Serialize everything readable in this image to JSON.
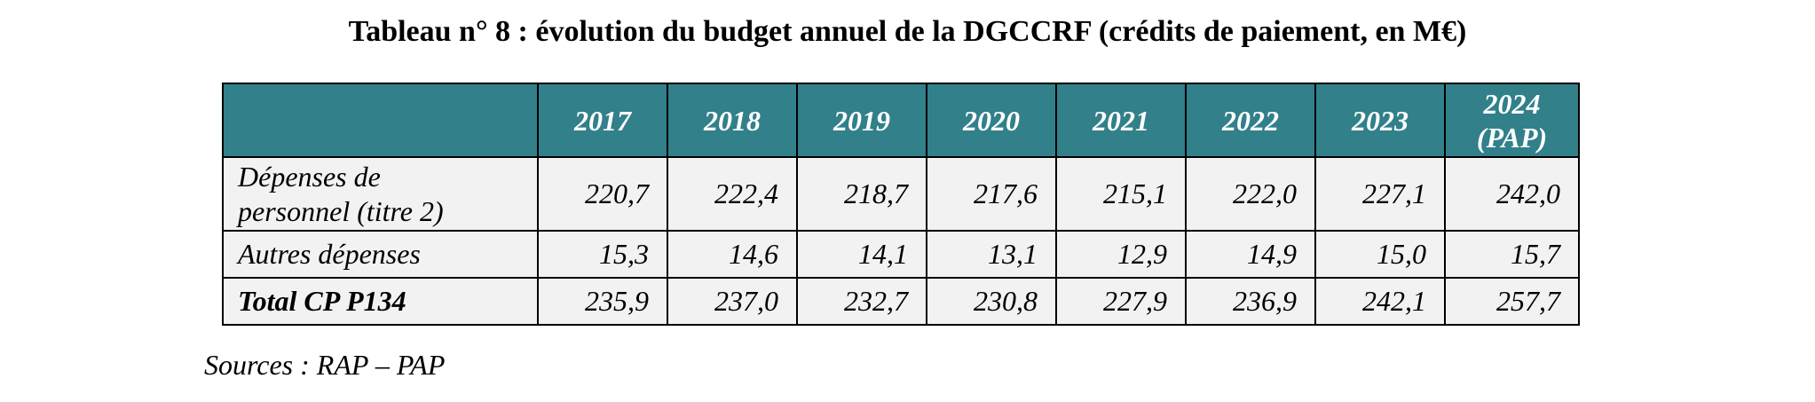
{
  "title": "Tableau n° 8 :  évolution du budget annuel de la DGCCRF (crédits de paiement, en M€)",
  "table": {
    "headers": [
      "",
      "2017",
      "2018",
      "2019",
      "2020",
      "2021",
      "2022",
      "2023",
      "2024 (PAP)"
    ],
    "header_last_lines": [
      "2024",
      "(PAP)"
    ],
    "rows": [
      {
        "label_lines": [
          "Dépenses de",
          "personnel (titre 2)"
        ],
        "values": [
          "220,7",
          "222,4",
          "218,7",
          "217,6",
          "215,1",
          "222,0",
          "227,1",
          "242,0"
        ]
      },
      {
        "label": "Autres dépenses",
        "values": [
          "15,3",
          "14,6",
          "14,1",
          "13,1",
          "12,9",
          "14,9",
          "15,0",
          "15,7"
        ]
      },
      {
        "label": "Total CP P134",
        "values": [
          "235,9",
          "237,0",
          "232,7",
          "230,8",
          "227,9",
          "236,9",
          "242,1",
          "257,7"
        ]
      }
    ]
  },
  "source": "Sources : RAP – PAP",
  "colors": {
    "header_background": "#31808a",
    "header_text": "#ffffff",
    "body_background": "#f2f2f2"
  }
}
